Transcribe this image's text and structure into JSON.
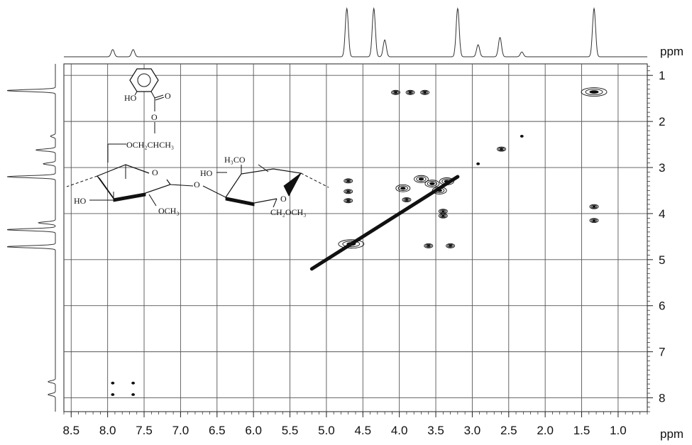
{
  "chart_data": {
    "type": "contour",
    "x_axis": {
      "unit_label": "ppm",
      "tick_labels": [
        "8.5",
        "8.0",
        "7.5",
        "7.0",
        "6.5",
        "6.0",
        "5.5",
        "5.0",
        "4.5",
        "4.0",
        "3.5",
        "3.0",
        "2.5",
        "2.0",
        "1.5",
        "1.0"
      ],
      "tick_values": [
        8.5,
        8.0,
        7.5,
        7.0,
        6.5,
        6.0,
        5.5,
        5.0,
        4.5,
        4.0,
        3.5,
        3.0,
        2.5,
        2.0,
        1.5,
        1.0
      ],
      "range": [
        8.6,
        0.6
      ],
      "reversed": true
    },
    "y_axis": {
      "unit_label": "ppm",
      "tick_labels": [
        "1",
        "2",
        "3",
        "4",
        "5",
        "6",
        "7",
        "8"
      ],
      "tick_values": [
        1,
        2,
        3,
        4,
        5,
        6,
        7,
        8
      ],
      "range": [
        0.75,
        8.3
      ],
      "reversed": true
    },
    "grid": true,
    "cross_peaks": [
      {
        "x": 4.66,
        "y": 4.66,
        "size": "large"
      },
      {
        "x": 4.7,
        "y": 3.29,
        "size": "small"
      },
      {
        "x": 4.7,
        "y": 3.52,
        "size": "small"
      },
      {
        "x": 4.7,
        "y": 3.72,
        "size": "small"
      },
      {
        "x": 4.05,
        "y": 1.37,
        "size": "small"
      },
      {
        "x": 3.85,
        "y": 1.37,
        "size": "small"
      },
      {
        "x": 3.65,
        "y": 1.37,
        "size": "small"
      },
      {
        "x": 3.95,
        "y": 3.45,
        "size": "medium"
      },
      {
        "x": 3.7,
        "y": 3.25,
        "size": "medium"
      },
      {
        "x": 3.55,
        "y": 3.35,
        "size": "medium"
      },
      {
        "x": 3.45,
        "y": 3.5,
        "size": "medium"
      },
      {
        "x": 3.35,
        "y": 3.3,
        "size": "medium"
      },
      {
        "x": 3.4,
        "y": 3.95,
        "size": "small"
      },
      {
        "x": 3.4,
        "y": 4.05,
        "size": "small"
      },
      {
        "x": 3.3,
        "y": 4.7,
        "size": "small"
      },
      {
        "x": 3.6,
        "y": 4.7,
        "size": "small"
      },
      {
        "x": 3.9,
        "y": 3.7,
        "size": "small"
      },
      {
        "x": 2.92,
        "y": 2.92,
        "size": "tiny"
      },
      {
        "x": 2.6,
        "y": 2.6,
        "size": "small"
      },
      {
        "x": 2.32,
        "y": 2.32,
        "size": "tiny"
      },
      {
        "x": 1.33,
        "y": 1.36,
        "size": "large"
      },
      {
        "x": 1.33,
        "y": 3.85,
        "size": "small"
      },
      {
        "x": 1.33,
        "y": 4.15,
        "size": "small"
      },
      {
        "x": 7.93,
        "y": 7.68,
        "size": "tiny"
      },
      {
        "x": 7.65,
        "y": 7.68,
        "size": "tiny"
      },
      {
        "x": 7.93,
        "y": 7.93,
        "size": "tiny"
      },
      {
        "x": 7.65,
        "y": 7.93,
        "size": "tiny"
      }
    ],
    "diagonal": {
      "from": 5.2,
      "to": 3.2
    },
    "projection_peaks": [
      {
        "ppm": 7.93,
        "height": 0.15
      },
      {
        "ppm": 7.65,
        "height": 0.15
      },
      {
        "ppm": 4.72,
        "height": 1.0
      },
      {
        "ppm": 4.35,
        "height": 1.0
      },
      {
        "ppm": 4.2,
        "height": 0.35
      },
      {
        "ppm": 3.2,
        "height": 1.0
      },
      {
        "ppm": 2.92,
        "height": 0.25
      },
      {
        "ppm": 2.62,
        "height": 0.4
      },
      {
        "ppm": 2.32,
        "height": 0.1
      },
      {
        "ppm": 1.33,
        "height": 1.0
      }
    ],
    "structure_labels": {
      "ar_oh": "HO",
      "ar_o": "O",
      "ester_o": "O",
      "side_chain": "OCH₂CHCH₃",
      "methoxy_top": "H₃CO",
      "ho_right": "HO",
      "ring_o_right": "O",
      "ring_o_left": "O",
      "bridge_o": "O",
      "ho_left": "HO",
      "och3": "OCH₃",
      "ch2och3": "CH₂OCH₃"
    }
  }
}
